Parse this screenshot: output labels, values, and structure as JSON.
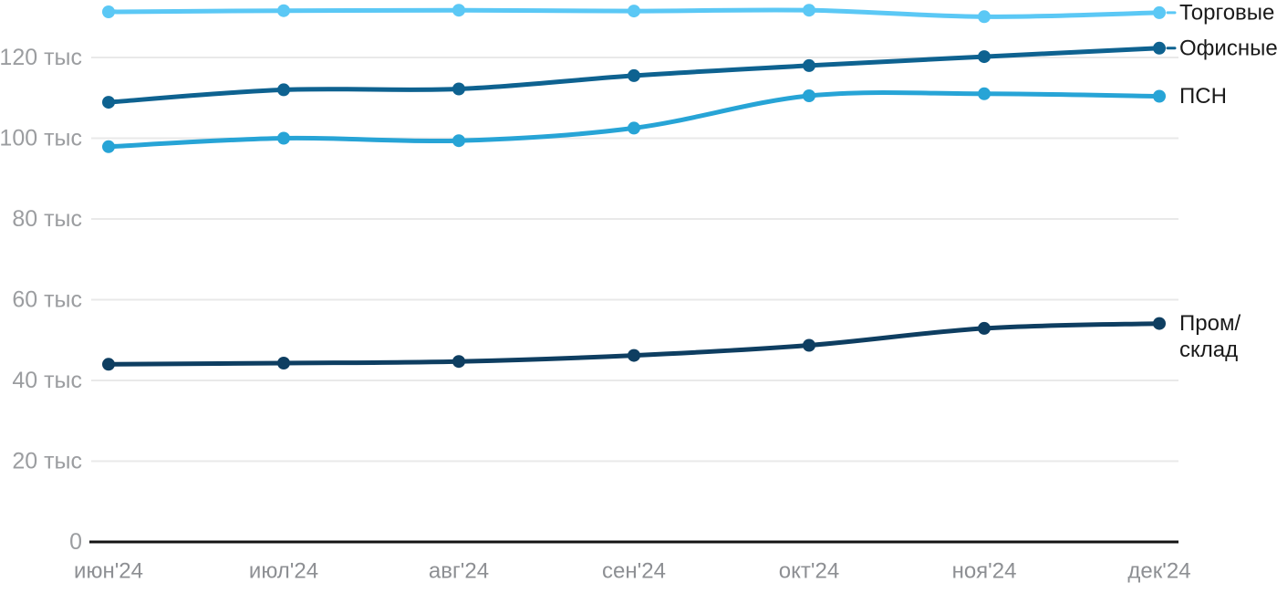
{
  "chart_data": {
    "type": "line",
    "title": "",
    "xlabel": "",
    "ylabel": "",
    "unit_suffix": "тыс",
    "grid": "horizontal",
    "legend_position": "right-of-line-ends",
    "background": "#ffffff",
    "axis_line_color": "#141414",
    "gridline_color": "#e9e9e9",
    "ytick_text_color": "#9b9da0",
    "xtick_text_color": "#8d8f93",
    "legend_text_color": "#1a1a1a",
    "categories": [
      "июн'24",
      "июл'24",
      "авг'24",
      "сен'24",
      "окт'24",
      "ноя'24",
      "дек'24"
    ],
    "y_ticks": [
      {
        "value": 0,
        "label": "0"
      },
      {
        "value": 20,
        "label": "20 тыс"
      },
      {
        "value": 40,
        "label": "40 тыс"
      },
      {
        "value": 60,
        "label": "60 тыс"
      },
      {
        "value": 80,
        "label": "80 тыс"
      },
      {
        "value": 100,
        "label": "100 тыс"
      },
      {
        "value": 120,
        "label": "120 тыс"
      }
    ],
    "ylim": [
      0,
      134
    ],
    "series": [
      {
        "name": "Торговые",
        "label_lines": [
          "Торговые"
        ],
        "color": "#5bc8f5",
        "leader_dash": true,
        "values": [
          131.3,
          131.6,
          131.7,
          131.5,
          131.7,
          130.1,
          131.1
        ]
      },
      {
        "name": "Офисные",
        "label_lines": [
          "Офисные"
        ],
        "color": "#0e6290",
        "leader_dash": true,
        "values": [
          108.9,
          112.0,
          112.2,
          115.5,
          118.0,
          120.2,
          122.3
        ]
      },
      {
        "name": "ПСН",
        "label_lines": [
          "ПСН"
        ],
        "color": "#27a4d6",
        "leader_dash": false,
        "values": [
          97.9,
          100.0,
          99.4,
          102.5,
          110.5,
          111.0,
          110.4
        ]
      },
      {
        "name": "Пром/склад",
        "label_lines": [
          "Пром/",
          "склад"
        ],
        "color": "#0e3e61",
        "leader_dash": false,
        "values": [
          44.0,
          44.3,
          44.7,
          46.2,
          48.7,
          52.9,
          54.1
        ]
      }
    ]
  }
}
